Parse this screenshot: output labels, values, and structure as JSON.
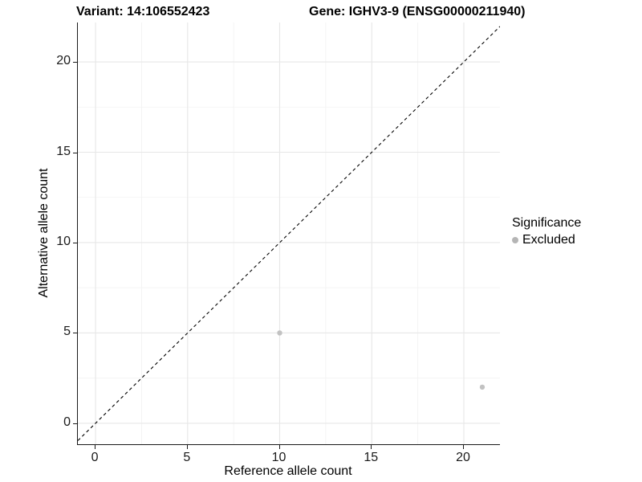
{
  "header": {
    "variant_title": "Variant: 14:106552423",
    "gene_title": "Gene: IGHV3-9 (ENSG00000211940)"
  },
  "legend": {
    "title": "Significance",
    "items": [
      {
        "label": "Excluded",
        "color": "#b5b5b5"
      }
    ]
  },
  "chart_data": {
    "type": "scatter",
    "title": {
      "left": "Variant: 14:106552423",
      "right": "Gene: IGHV3-9 (ENSG00000211940)"
    },
    "xlabel": "Reference allele count",
    "ylabel": "Alternative allele count",
    "xlim": [
      -0.96,
      21.96
    ],
    "ylim": [
      -1.16,
      22.18
    ],
    "x_ticks": [
      0,
      5,
      10,
      15,
      20
    ],
    "y_ticks": [
      0,
      5,
      10,
      15,
      20
    ],
    "x_minor_ticks": [
      2.5,
      7.5,
      12.5,
      17.5
    ],
    "y_minor_ticks": [
      2.5,
      7.5,
      12.5,
      17.5
    ],
    "grid": true,
    "legend_position": "right",
    "series": [
      {
        "name": "Excluded",
        "color": "#c2c2c2",
        "point_radius": 3.2,
        "points": [
          {
            "x": 10,
            "y": 5
          },
          {
            "x": 21,
            "y": 2
          }
        ]
      }
    ],
    "annotations": [
      {
        "type": "line",
        "slope": 1,
        "intercept": 0,
        "style": "dashed",
        "color": "#000000"
      }
    ],
    "colors": {
      "grid_major": "#e7e7e7",
      "grid_minor": "#f2f2f2",
      "axis_line": "#1a1a1a",
      "tick_text": "#1a1a1a",
      "background": "#ffffff"
    }
  }
}
